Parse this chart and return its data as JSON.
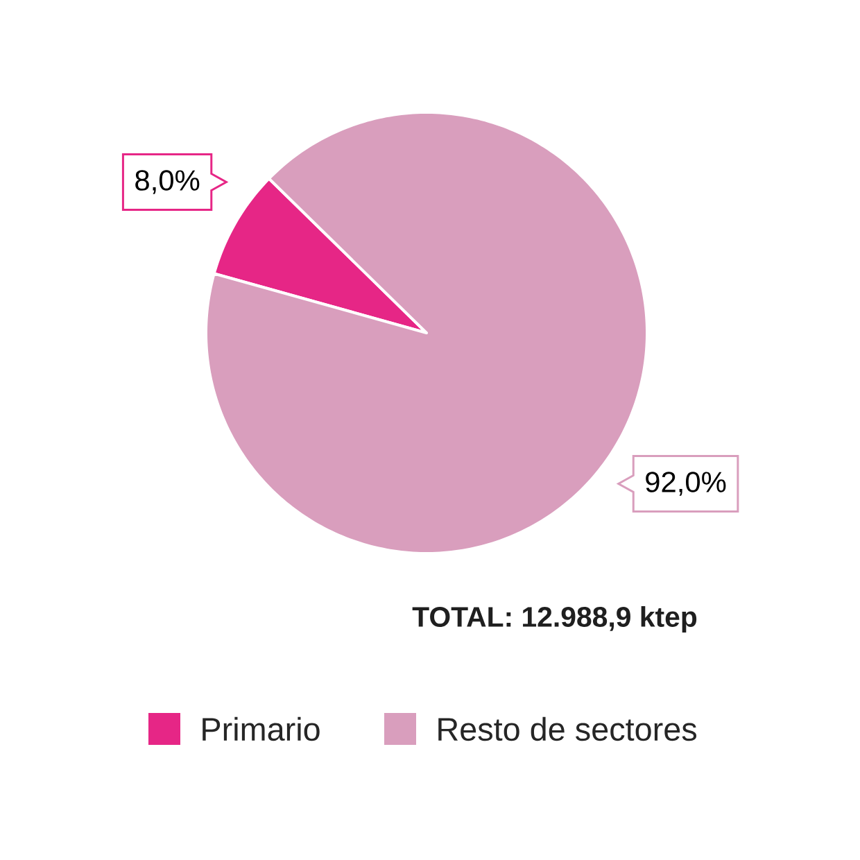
{
  "chart_data": {
    "type": "pie",
    "categories": [
      "Primario",
      "Resto de sectores"
    ],
    "values": [
      8.0,
      92.0
    ],
    "colors": [
      "#e62686",
      "#d99ebd"
    ],
    "value_labels": [
      "8,0%",
      "92,0%"
    ],
    "annotations": [
      "TOTAL: 12.988,9 ktep"
    ],
    "legend": "bottom"
  }
}
